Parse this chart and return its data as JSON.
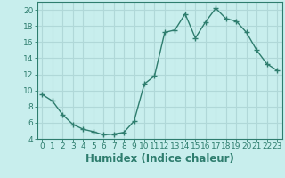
{
  "x": [
    0,
    1,
    2,
    3,
    4,
    5,
    6,
    7,
    8,
    9,
    10,
    11,
    12,
    13,
    14,
    15,
    16,
    17,
    18,
    19,
    20,
    21,
    22,
    23
  ],
  "y": [
    9.5,
    8.7,
    7.0,
    5.8,
    5.2,
    4.9,
    4.5,
    4.6,
    4.8,
    6.2,
    10.8,
    11.8,
    17.2,
    17.5,
    19.5,
    16.5,
    18.5,
    20.2,
    18.9,
    18.6,
    17.2,
    15.0,
    13.3,
    12.5
  ],
  "bg_color": "#c8eeed",
  "grid_color": "#b0d8d8",
  "line_color": "#2e7d6e",
  "marker_color": "#2e7d6e",
  "xlabel": "Humidex (Indice chaleur)",
  "ylim": [
    4,
    21
  ],
  "xlim": [
    -0.5,
    23.5
  ],
  "yticks": [
    4,
    6,
    8,
    10,
    12,
    14,
    16,
    18,
    20
  ],
  "xticks": [
    0,
    1,
    2,
    3,
    4,
    5,
    6,
    7,
    8,
    9,
    10,
    11,
    12,
    13,
    14,
    15,
    16,
    17,
    18,
    19,
    20,
    21,
    22,
    23
  ],
  "xtick_labels": [
    "0",
    "1",
    "2",
    "3",
    "4",
    "5",
    "6",
    "7",
    "8",
    "9",
    "10",
    "11",
    "12",
    "13",
    "14",
    "15",
    "16",
    "17",
    "18",
    "19",
    "20",
    "21",
    "22",
    "23"
  ],
  "tick_font_size": 6.5,
  "xlabel_fontsize": 8.5
}
